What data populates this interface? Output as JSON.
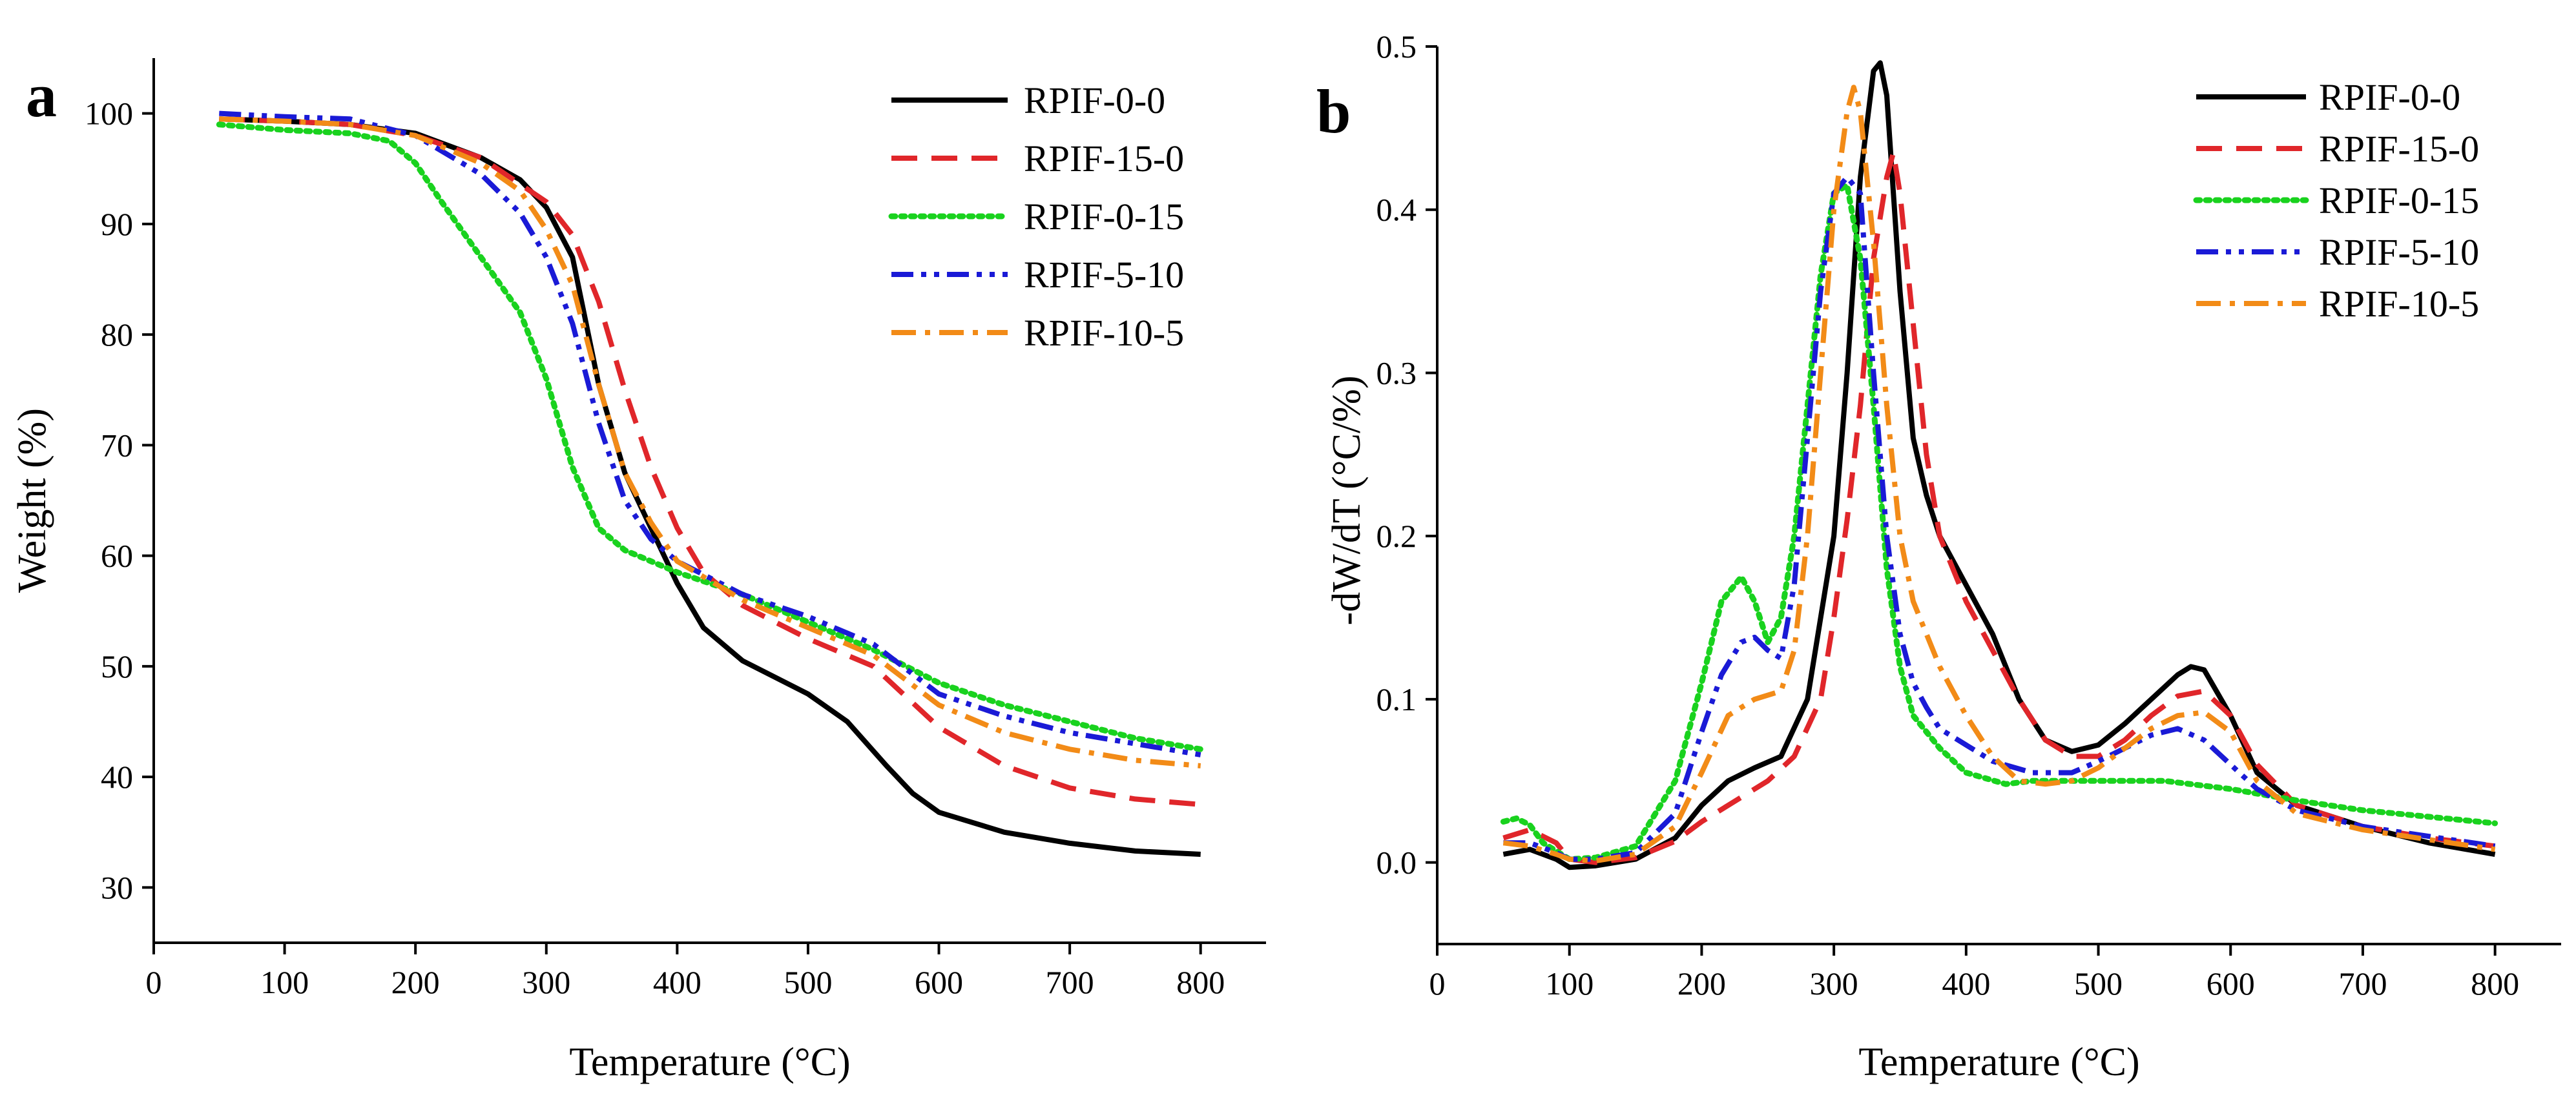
{
  "chart_data": [
    {
      "panel": "a",
      "type": "line",
      "title": "",
      "xlabel": "Temperature (°C)",
      "ylabel": "Weight (%)",
      "xlim": [
        0,
        850
      ],
      "ylim": [
        25,
        105
      ],
      "xticks": [
        0,
        100,
        200,
        300,
        400,
        500,
        600,
        700,
        800
      ],
      "yticks": [
        30,
        40,
        50,
        60,
        70,
        80,
        90,
        100
      ],
      "legend_position": "top-right",
      "series": [
        {
          "name": "RPIF-0-0",
          "color": "#000000",
          "style": "solid",
          "x": [
            50,
            100,
            150,
            200,
            250,
            280,
            300,
            320,
            340,
            360,
            380,
            400,
            420,
            450,
            500,
            530,
            560,
            580,
            600,
            650,
            700,
            750,
            800
          ],
          "y": [
            99.5,
            99.3,
            99.0,
            98.2,
            96.0,
            94.0,
            91.5,
            87.0,
            75.5,
            67.5,
            62.5,
            57.5,
            53.5,
            50.5,
            47.5,
            45.0,
            41.0,
            38.5,
            36.8,
            35.0,
            34.0,
            33.3,
            33.0
          ]
        },
        {
          "name": "RPIF-15-0",
          "color": "#e0262a",
          "style": "dashed",
          "x": [
            50,
            100,
            150,
            200,
            250,
            300,
            320,
            340,
            360,
            380,
            400,
            420,
            450,
            500,
            550,
            600,
            650,
            700,
            750,
            800
          ],
          "y": [
            99.5,
            99.3,
            99.0,
            98.0,
            96.0,
            92.0,
            89.0,
            83.0,
            75.0,
            68.0,
            62.5,
            58.5,
            55.5,
            52.5,
            50.0,
            44.5,
            41.0,
            39.0,
            38.0,
            37.5
          ]
        },
        {
          "name": "RPIF-0-15",
          "color": "#19d21e",
          "style": "dotted",
          "x": [
            50,
            100,
            150,
            180,
            200,
            220,
            250,
            280,
            300,
            320,
            340,
            360,
            380,
            400,
            450,
            500,
            550,
            600,
            650,
            700,
            750,
            800
          ],
          "y": [
            99.0,
            98.5,
            98.2,
            97.5,
            95.5,
            92.0,
            87.0,
            82.0,
            76.0,
            68.0,
            62.5,
            60.5,
            59.5,
            58.5,
            56.5,
            54.0,
            51.5,
            48.5,
            46.5,
            45.0,
            43.5,
            42.5
          ]
        },
        {
          "name": "RPIF-5-10",
          "color": "#1a1ad6",
          "style": "dashdotdot",
          "x": [
            50,
            100,
            150,
            200,
            250,
            280,
            300,
            320,
            340,
            360,
            380,
            400,
            450,
            500,
            550,
            600,
            650,
            700,
            750,
            800
          ],
          "y": [
            100.0,
            99.7,
            99.5,
            98.0,
            94.5,
            91.0,
            87.0,
            81.0,
            72.0,
            65.0,
            61.5,
            59.5,
            56.5,
            54.5,
            52.0,
            47.5,
            45.5,
            44.0,
            43.0,
            42.0
          ]
        },
        {
          "name": "RPIF-10-5",
          "color": "#f28b17",
          "style": "dashdot",
          "x": [
            50,
            100,
            150,
            200,
            250,
            280,
            300,
            320,
            340,
            360,
            380,
            400,
            450,
            500,
            550,
            600,
            650,
            700,
            750,
            800
          ],
          "y": [
            99.5,
            99.3,
            99.0,
            98.0,
            95.5,
            93.0,
            89.5,
            84.5,
            75.5,
            67.5,
            63.0,
            59.5,
            56.0,
            53.5,
            51.0,
            46.5,
            44.0,
            42.5,
            41.5,
            41.0
          ]
        }
      ]
    },
    {
      "panel": "b",
      "type": "line",
      "title": "",
      "xlabel": "Temperature (°C)",
      "ylabel": "-dW/dT (°C/%)",
      "xlim": [
        0,
        850
      ],
      "ylim": [
        -0.05,
        0.5
      ],
      "xticks": [
        0,
        100,
        200,
        300,
        400,
        500,
        600,
        700,
        800
      ],
      "yticks": [
        0.0,
        0.1,
        0.2,
        0.3,
        0.4,
        0.5
      ],
      "ytick_labels": [
        "0.0",
        "0.1",
        "0.2",
        "0.3",
        "0.4",
        "0.5"
      ],
      "legend_position": "top-right",
      "series": [
        {
          "name": "RPIF-0-0",
          "color": "#000000",
          "style": "solid",
          "x": [
            50,
            70,
            90,
            100,
            120,
            150,
            180,
            200,
            220,
            240,
            260,
            280,
            300,
            310,
            320,
            330,
            335,
            340,
            350,
            360,
            370,
            380,
            400,
            420,
            440,
            460,
            480,
            500,
            520,
            540,
            560,
            570,
            580,
            600,
            620,
            650,
            700,
            750,
            800
          ],
          "y": [
            0.005,
            0.008,
            0.002,
            -0.003,
            -0.002,
            0.002,
            0.015,
            0.035,
            0.05,
            0.058,
            0.065,
            0.1,
            0.2,
            0.3,
            0.42,
            0.485,
            0.49,
            0.47,
            0.35,
            0.26,
            0.225,
            0.2,
            0.17,
            0.14,
            0.1,
            0.075,
            0.068,
            0.072,
            0.085,
            0.1,
            0.115,
            0.12,
            0.118,
            0.09,
            0.055,
            0.035,
            0.022,
            0.012,
            0.005
          ]
        },
        {
          "name": "RPIF-15-0",
          "color": "#e0262a",
          "style": "dashed",
          "x": [
            50,
            70,
            90,
            100,
            120,
            150,
            180,
            200,
            220,
            250,
            270,
            290,
            300,
            310,
            320,
            330,
            340,
            345,
            350,
            360,
            370,
            380,
            400,
            420,
            440,
            460,
            480,
            500,
            520,
            540,
            560,
            580,
            600,
            620,
            650,
            700,
            750,
            800
          ],
          "y": [
            0.015,
            0.02,
            0.012,
            0.002,
            0.0,
            0.003,
            0.013,
            0.025,
            0.035,
            0.05,
            0.065,
            0.1,
            0.15,
            0.21,
            0.28,
            0.37,
            0.42,
            0.435,
            0.41,
            0.33,
            0.25,
            0.2,
            0.16,
            0.13,
            0.1,
            0.075,
            0.065,
            0.065,
            0.075,
            0.09,
            0.102,
            0.105,
            0.09,
            0.06,
            0.035,
            0.022,
            0.015,
            0.01
          ]
        },
        {
          "name": "RPIF-0-15",
          "color": "#19d21e",
          "style": "dotted",
          "x": [
            50,
            60,
            70,
            80,
            100,
            120,
            150,
            180,
            200,
            215,
            230,
            240,
            250,
            260,
            270,
            280,
            290,
            300,
            310,
            320,
            330,
            340,
            350,
            360,
            380,
            400,
            430,
            450,
            500,
            550,
            600,
            650,
            700,
            750,
            800
          ],
          "y": [
            0.025,
            0.027,
            0.023,
            0.012,
            0.002,
            0.003,
            0.01,
            0.05,
            0.11,
            0.16,
            0.175,
            0.16,
            0.135,
            0.15,
            0.2,
            0.28,
            0.36,
            0.41,
            0.415,
            0.37,
            0.28,
            0.18,
            0.12,
            0.09,
            0.07,
            0.055,
            0.048,
            0.05,
            0.05,
            0.05,
            0.045,
            0.038,
            0.032,
            0.028,
            0.024
          ]
        },
        {
          "name": "RPIF-5-10",
          "color": "#1a1ad6",
          "style": "dashdotdot",
          "x": [
            50,
            70,
            90,
            100,
            120,
            150,
            180,
            200,
            215,
            230,
            240,
            250,
            260,
            270,
            280,
            290,
            300,
            310,
            320,
            330,
            340,
            350,
            360,
            370,
            380,
            400,
            420,
            450,
            480,
            500,
            520,
            540,
            560,
            580,
            600,
            620,
            650,
            700,
            750,
            800
          ],
          "y": [
            0.012,
            0.012,
            0.006,
            0.002,
            0.002,
            0.006,
            0.03,
            0.08,
            0.115,
            0.135,
            0.138,
            0.13,
            0.125,
            0.17,
            0.26,
            0.35,
            0.41,
            0.42,
            0.41,
            0.3,
            0.2,
            0.14,
            0.11,
            0.095,
            0.082,
            0.072,
            0.062,
            0.055,
            0.055,
            0.062,
            0.07,
            0.078,
            0.082,
            0.075,
            0.06,
            0.045,
            0.032,
            0.022,
            0.016,
            0.01
          ]
        },
        {
          "name": "RPIF-10-5",
          "color": "#f28b17",
          "style": "dashdot",
          "x": [
            50,
            70,
            90,
            100,
            120,
            150,
            180,
            200,
            220,
            240,
            260,
            270,
            280,
            290,
            300,
            310,
            315,
            320,
            330,
            340,
            350,
            360,
            380,
            400,
            420,
            440,
            460,
            480,
            500,
            520,
            540,
            560,
            580,
            600,
            620,
            650,
            700,
            750,
            800
          ],
          "y": [
            0.012,
            0.01,
            0.005,
            0.002,
            0.001,
            0.005,
            0.022,
            0.055,
            0.09,
            0.1,
            0.105,
            0.13,
            0.2,
            0.3,
            0.4,
            0.46,
            0.475,
            0.46,
            0.38,
            0.28,
            0.2,
            0.16,
            0.12,
            0.09,
            0.065,
            0.05,
            0.048,
            0.05,
            0.058,
            0.07,
            0.082,
            0.09,
            0.092,
            0.08,
            0.05,
            0.03,
            0.02,
            0.014,
            0.008
          ]
        }
      ]
    }
  ]
}
